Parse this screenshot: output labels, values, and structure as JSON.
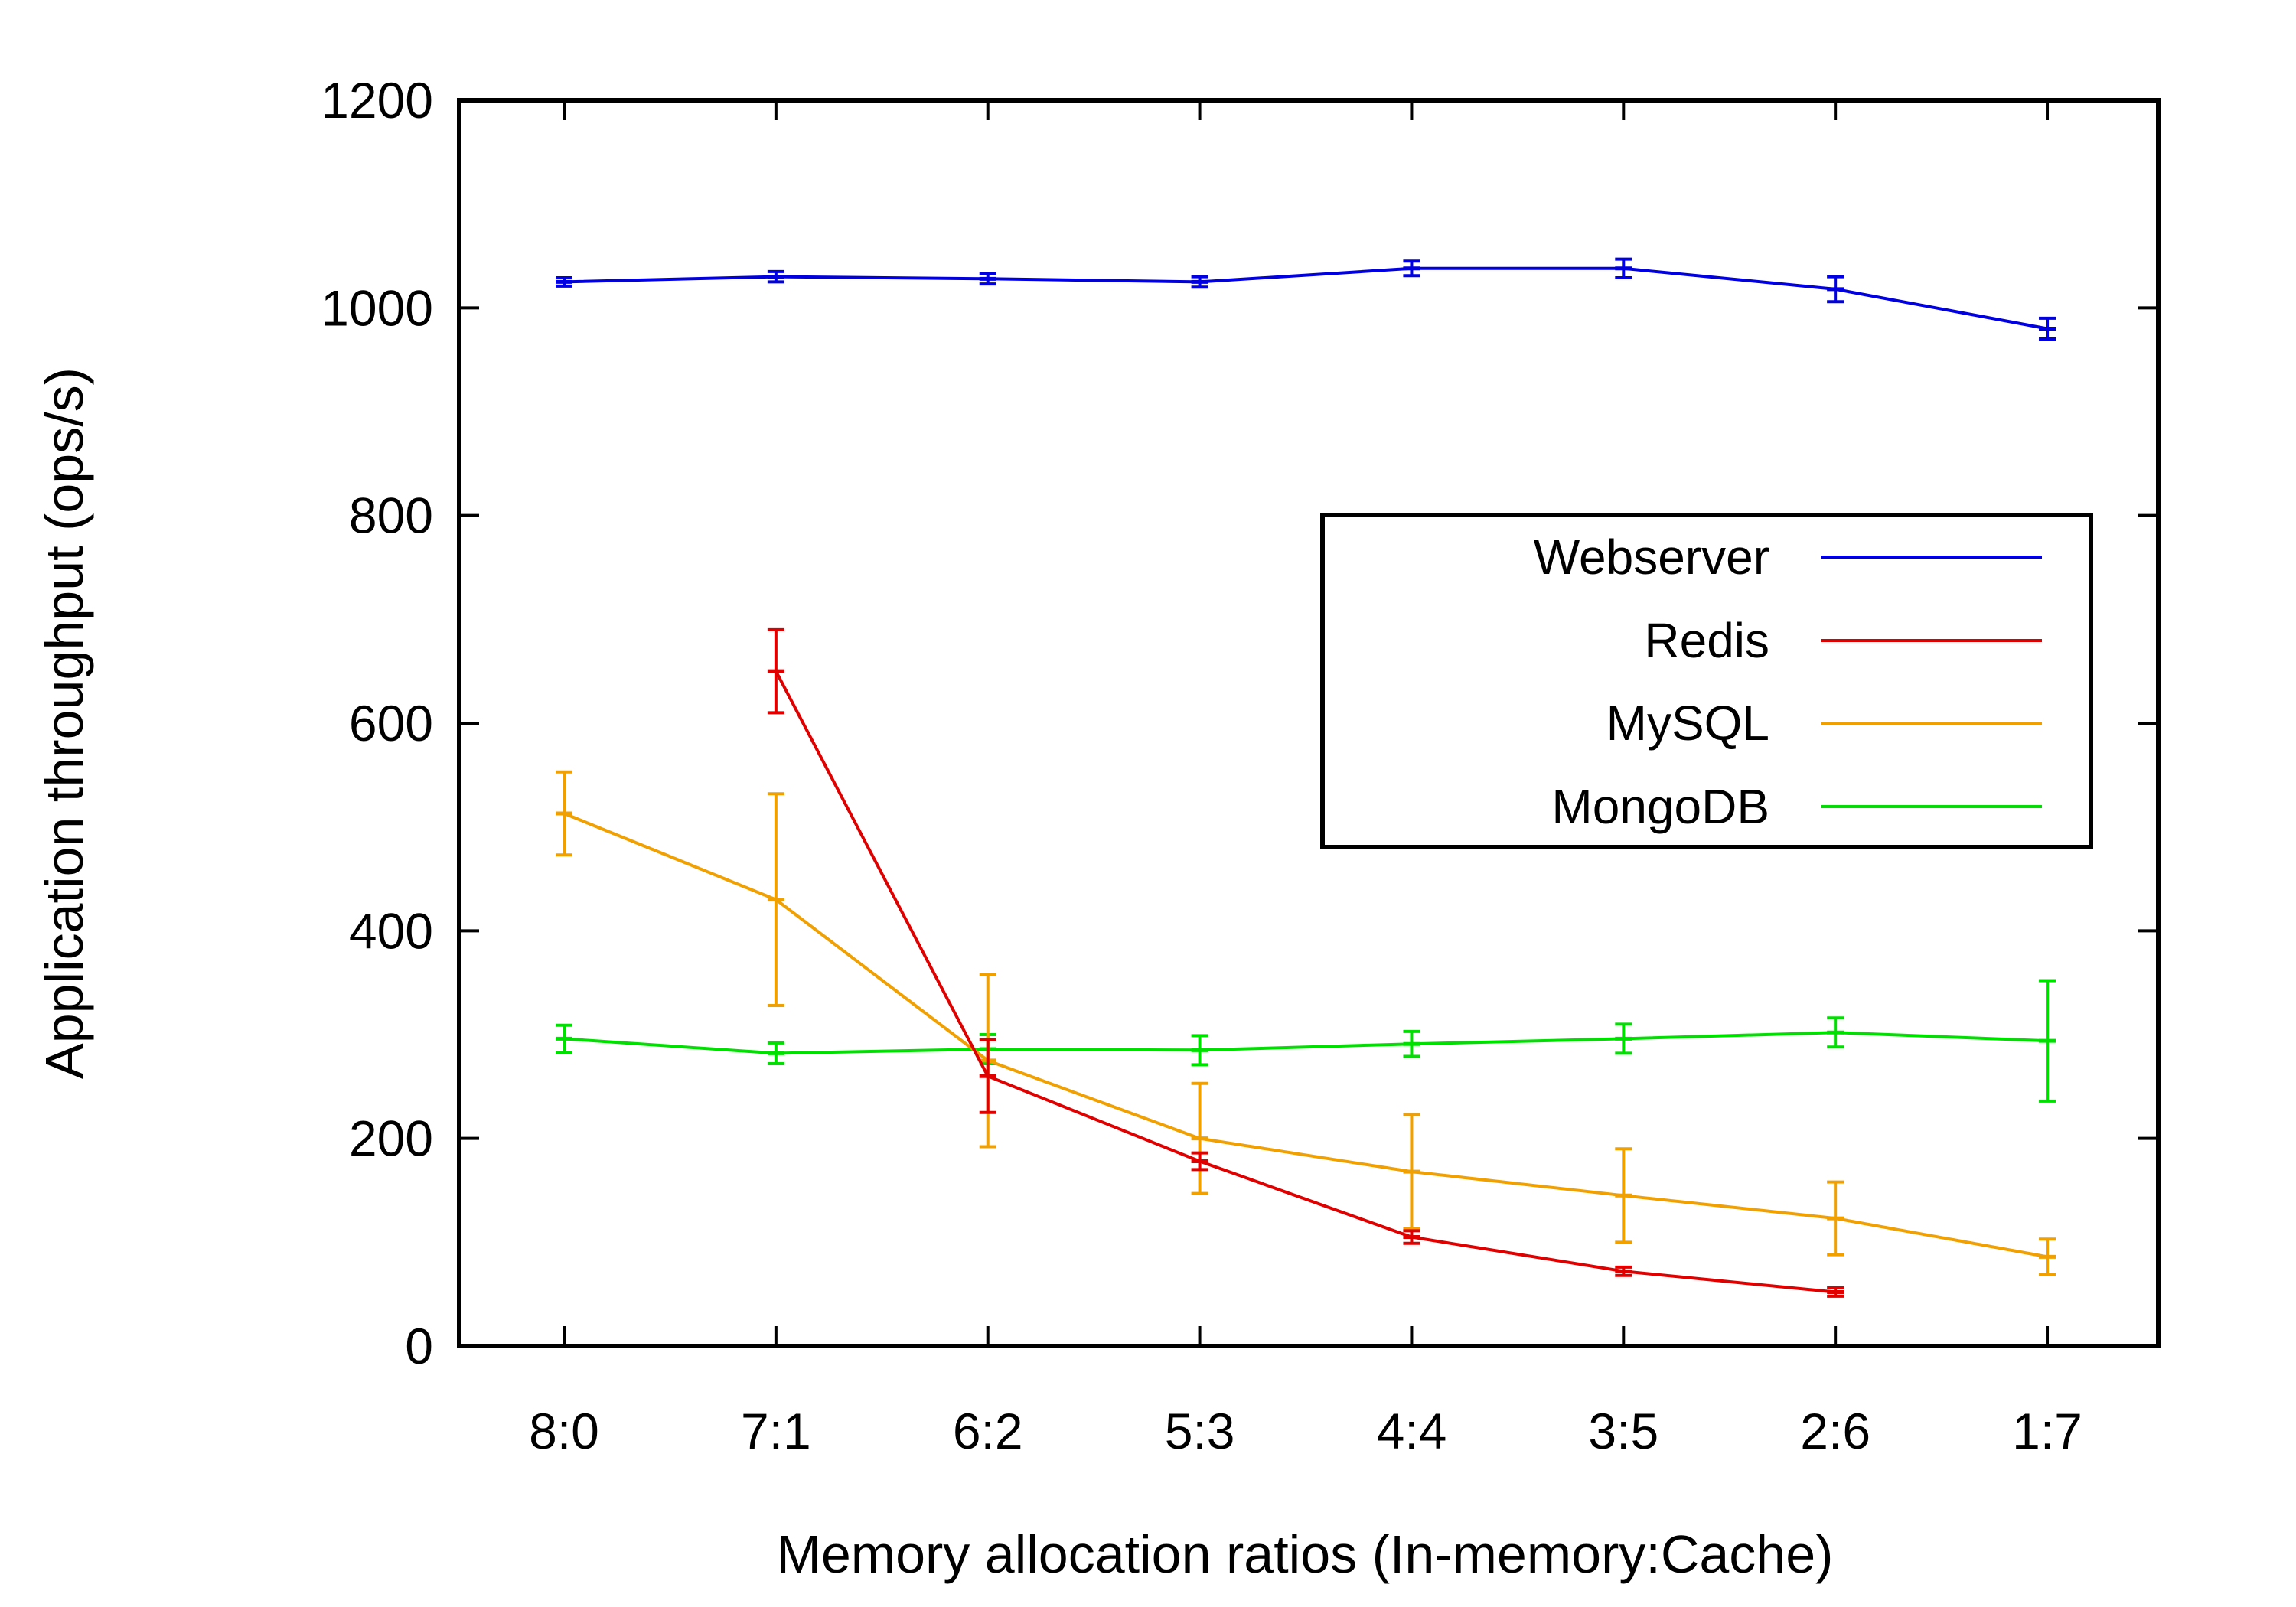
{
  "chart_data": {
    "type": "line",
    "xlabel": "Memory allocation ratios (In-memory:Cache)",
    "ylabel": "Application throughput (ops/s)",
    "categories": [
      "8:0",
      "7:1",
      "6:2",
      "5:3",
      "4:4",
      "3:5",
      "2:6",
      "1:7"
    ],
    "ylim": [
      0,
      1200
    ],
    "yticks": [
      "0",
      "200",
      "400",
      "600",
      "800",
      "1000",
      "1200"
    ],
    "grid": false,
    "legend_position": "center-right",
    "series": [
      {
        "name": "Webserver",
        "color": "#0000e0",
        "values": [
          1025,
          1030,
          1028,
          1025,
          1038,
          1038,
          1018,
          980
        ],
        "errors": [
          4,
          5,
          5,
          5,
          7,
          9,
          12,
          10
        ]
      },
      {
        "name": "Redis",
        "color": "#e00000",
        "values": [
          null,
          650,
          260,
          178,
          105,
          72,
          52,
          null
        ],
        "errors": [
          null,
          40,
          35,
          8,
          6,
          4,
          4,
          null
        ]
      },
      {
        "name": "MySQL",
        "color": "#f0a000",
        "values": [
          513,
          430,
          275,
          200,
          168,
          145,
          123,
          86
        ],
        "errors": [
          40,
          102,
          83,
          53,
          55,
          45,
          35,
          17
        ]
      },
      {
        "name": "MongoDB",
        "color": "#00e000",
        "values": [
          296,
          282,
          286,
          285,
          291,
          296,
          302,
          294
        ],
        "errors": [
          13,
          10,
          14,
          14,
          12,
          14,
          14,
          58
        ]
      }
    ]
  }
}
